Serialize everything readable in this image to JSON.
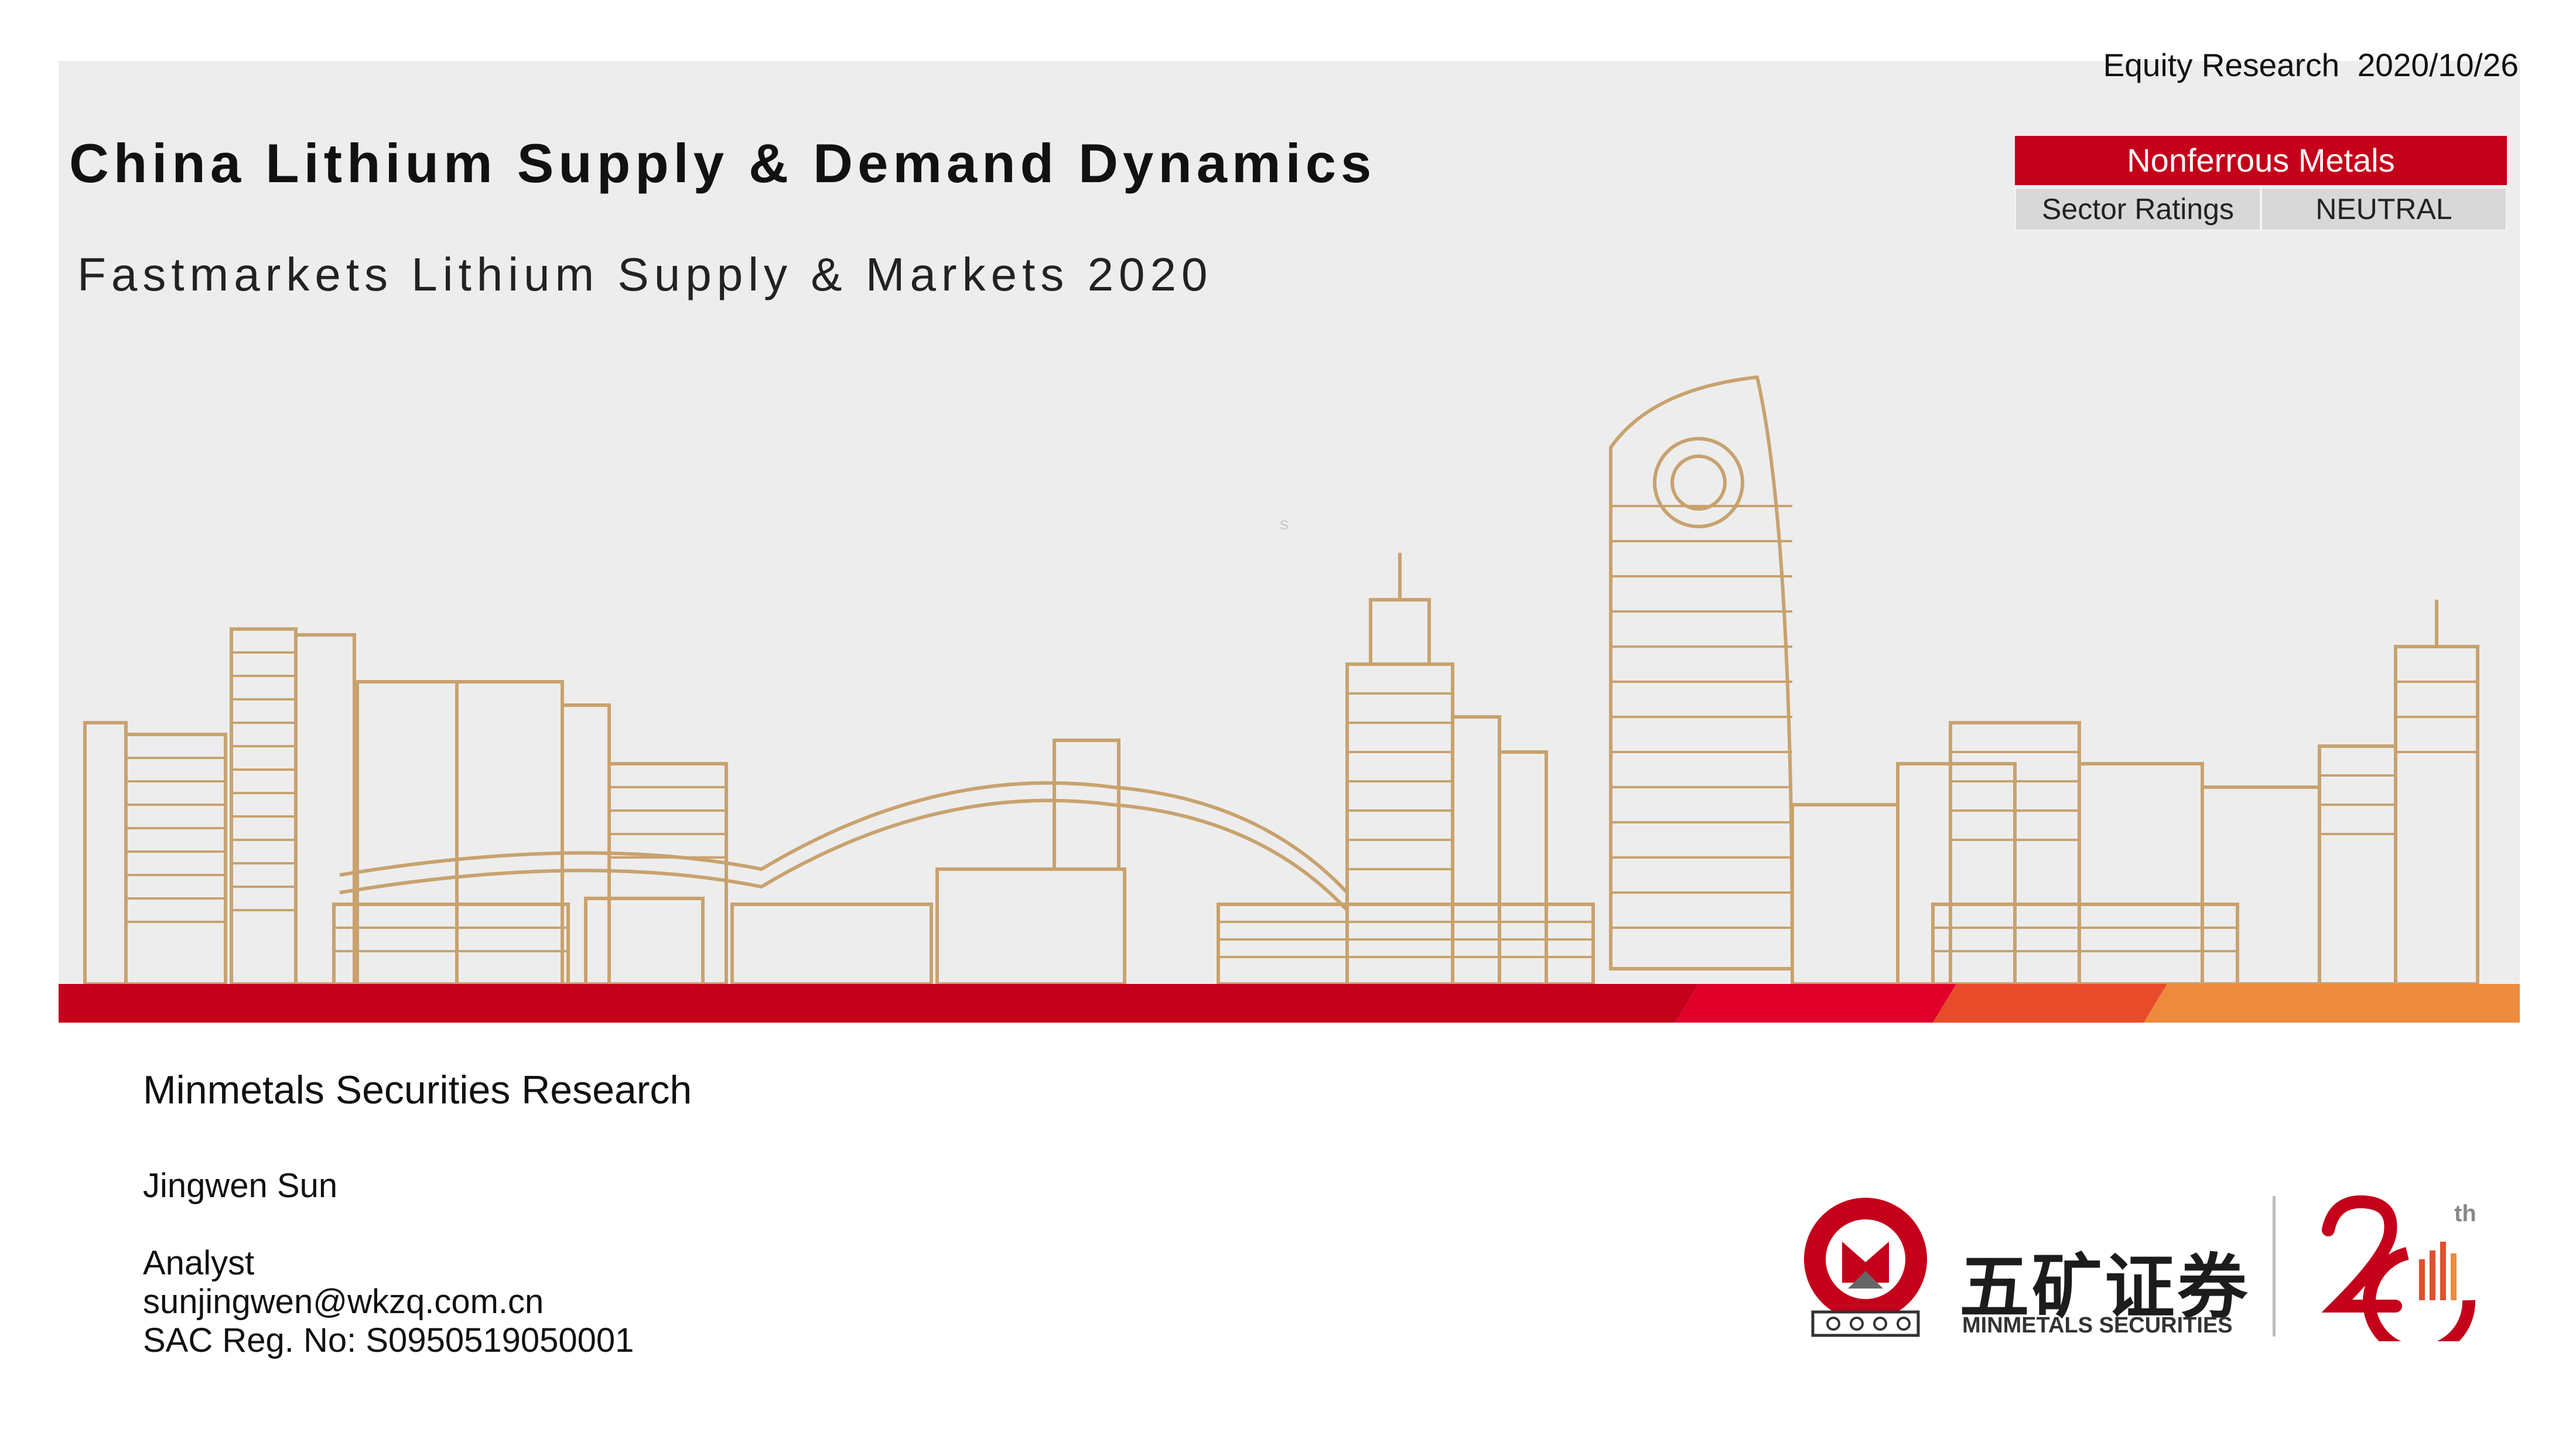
{
  "header": {
    "report_type": "Equity Research",
    "date": "2020/10/26",
    "sector": "Nonferrous Metals",
    "ratings_label": "Sector Ratings",
    "rating": "NEUTRAL"
  },
  "cover": {
    "title": "China Lithium Supply & Demand Dynamics",
    "subtitle": "Fastmarkets Lithium Supply & Markets 2020",
    "stray_mark": "s"
  },
  "author": {
    "org": "Minmetals Securities Research",
    "name": "Jingwen Sun",
    "role": "Analyst",
    "email": "sunjingwen@wkzq.com.cn",
    "reg": "SAC Reg. No: S0950519050001"
  },
  "branding": {
    "name_cn": "五矿证券",
    "name_en": "MINMETALS SECURITIES",
    "badge_text": "MINMETALS",
    "anniversary_suffix": "th"
  },
  "colors": {
    "brand_red": "#c4001a",
    "skyline_gold": "#c8a26e",
    "band_orange": "#ee8a3c",
    "hero_bg": "#ededed"
  }
}
